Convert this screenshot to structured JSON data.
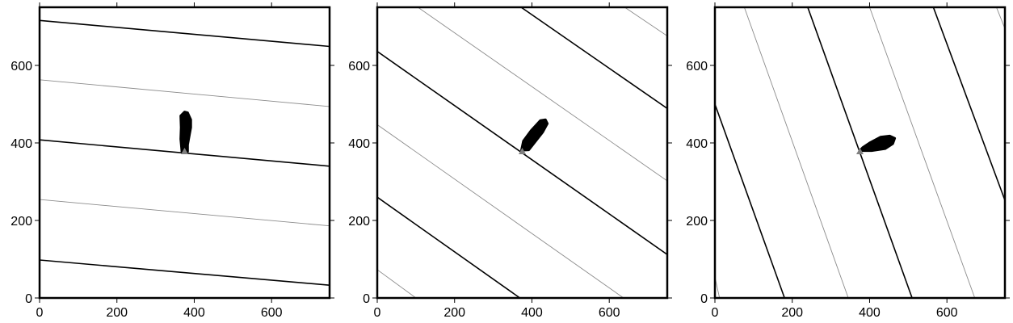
{
  "colors": {
    "frame": "#000000",
    "major_line": "#000000",
    "minor_line": "#8c8c8c",
    "blob": "#000000",
    "marker": "#7f7f7f"
  },
  "chart_data": [
    {
      "type": "line",
      "title": "",
      "xlabel": "",
      "ylabel": "",
      "xlim": [
        0,
        750
      ],
      "ylim": [
        0,
        750
      ],
      "x_ticks": [
        0,
        200,
        400,
        600
      ],
      "y_ticks": [
        0,
        200,
        400,
        600
      ],
      "grid": false,
      "contour_lines": [
        {
          "level": "major",
          "points": [
            [
              0,
              98
            ],
            [
              750,
              33
            ]
          ]
        },
        {
          "level": "minor",
          "points": [
            [
              0,
              254
            ],
            [
              750,
              186
            ]
          ]
        },
        {
          "level": "major",
          "points": [
            [
              0,
              408
            ],
            [
              750,
              340
            ]
          ]
        },
        {
          "level": "minor",
          "points": [
            [
              0,
              563
            ],
            [
              750,
              494
            ]
          ]
        },
        {
          "level": "major",
          "points": [
            [
              0,
              716
            ],
            [
              750,
              649
            ]
          ]
        }
      ],
      "blob": [
        [
          368,
          378
        ],
        [
          383,
          378
        ],
        [
          383,
          395
        ],
        [
          391,
          440
        ],
        [
          391,
          460
        ],
        [
          383,
          478
        ],
        [
          375,
          480
        ],
        [
          365,
          470
        ],
        [
          366,
          440
        ],
        [
          365,
          410
        ]
      ],
      "marker": [
        375,
        378
      ]
    },
    {
      "type": "line",
      "title": "",
      "xlabel": "",
      "ylabel": "",
      "xlim": [
        0,
        750
      ],
      "ylim": [
        0,
        750
      ],
      "x_ticks": [
        0,
        200,
        400,
        600
      ],
      "y_ticks": [
        0,
        200,
        400,
        600
      ],
      "grid": false,
      "contour_lines": [
        {
          "level": "minor",
          "points": [
            [
              0,
              73
            ],
            [
              100,
              0
            ]
          ]
        },
        {
          "level": "major",
          "points": [
            [
              0,
              260
            ],
            [
              369,
              0
            ]
          ]
        },
        {
          "level": "minor",
          "points": [
            [
              0,
              447
            ],
            [
              637,
              0
            ]
          ]
        },
        {
          "level": "major",
          "points": [
            [
              0,
              636
            ],
            [
              750,
              112
            ]
          ]
        },
        {
          "level": "minor",
          "points": [
            [
              105,
              750
            ],
            [
              750,
              302
            ]
          ]
        },
        {
          "level": "major",
          "points": [
            [
              372,
              750
            ],
            [
              750,
              489
            ]
          ]
        },
        {
          "level": "minor",
          "points": [
            [
              640,
              750
            ],
            [
              750,
              676
            ]
          ]
        }
      ],
      "blob": [
        [
          373,
          381
        ],
        [
          392,
          382
        ],
        [
          428,
          428
        ],
        [
          440,
          450
        ],
        [
          435,
          460
        ],
        [
          422,
          458
        ],
        [
          398,
          432
        ],
        [
          378,
          405
        ]
      ],
      "marker": [
        375,
        378
      ]
    },
    {
      "type": "line",
      "title": "",
      "xlabel": "",
      "ylabel": "",
      "xlim": [
        0,
        750
      ],
      "ylim": [
        0,
        750
      ],
      "x_ticks": [
        0,
        200,
        400,
        600
      ],
      "y_ticks": [
        0,
        200,
        400,
        600
      ],
      "grid": false,
      "contour_lines": [
        {
          "level": "minor",
          "points": [
            [
              0,
              54
            ],
            [
              12,
              0
            ]
          ]
        },
        {
          "level": "major",
          "points": [
            [
              0,
              500
            ],
            [
              180,
              0
            ]
          ]
        },
        {
          "level": "minor",
          "points": [
            [
              76,
              750
            ],
            [
              345,
              0
            ]
          ]
        },
        {
          "level": "major",
          "points": [
            [
              240,
              750
            ],
            [
              510,
              0
            ]
          ]
        },
        {
          "level": "minor",
          "points": [
            [
              400,
              750
            ],
            [
              672,
              0
            ]
          ]
        },
        {
          "level": "major",
          "points": [
            [
              565,
              750
            ],
            [
              750,
              252
            ]
          ]
        },
        {
          "level": "minor",
          "points": [
            [
              728,
              750
            ],
            [
              750,
              695
            ]
          ]
        }
      ],
      "blob": [
        [
          375,
          380
        ],
        [
          405,
          380
        ],
        [
          440,
          385
        ],
        [
          460,
          398
        ],
        [
          465,
          412
        ],
        [
          452,
          418
        ],
        [
          428,
          415
        ],
        [
          400,
          400
        ],
        [
          382,
          388
        ]
      ],
      "marker": [
        375,
        378
      ]
    }
  ]
}
